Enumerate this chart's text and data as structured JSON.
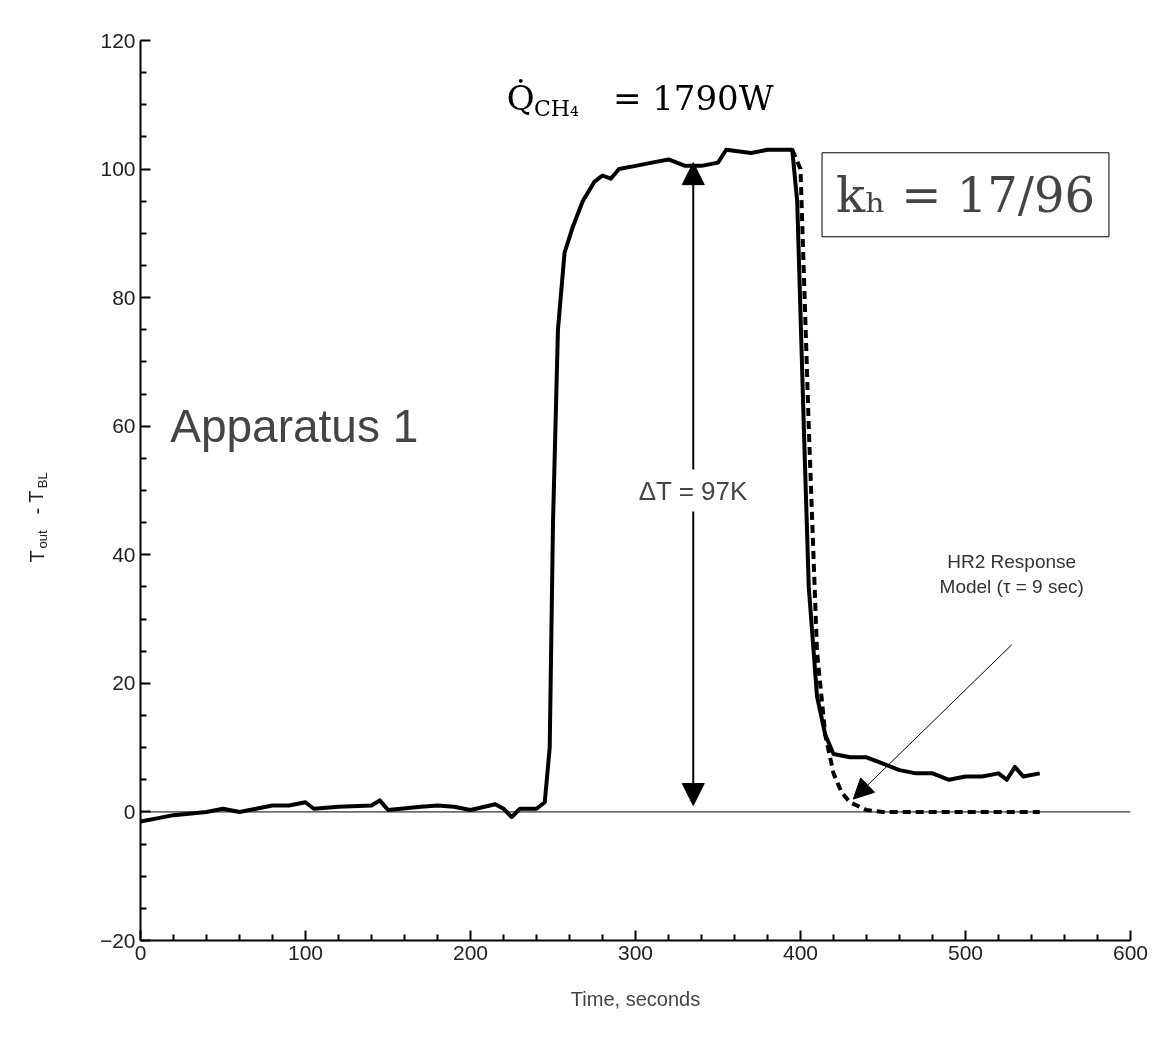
{
  "chart_data": {
    "type": "line",
    "xlabel": "Time, seconds",
    "ylabel": "T$_{out}$ - T$_{BL}$",
    "xlim": [
      0,
      600
    ],
    "ylim": [
      -20,
      120
    ],
    "xticks": [
      0,
      100,
      200,
      300,
      400,
      500,
      600
    ],
    "yticks": [
      -20,
      0,
      20,
      40,
      60,
      80,
      100,
      120
    ],
    "grid": false,
    "marker": "none",
    "series": [
      {
        "color": "#000000",
        "line_style": "solid",
        "x": [
          0,
          10,
          20,
          40,
          50,
          60,
          70,
          80,
          90,
          100,
          105,
          120,
          140,
          145,
          150,
          170,
          180,
          190,
          200,
          215,
          220,
          225,
          230,
          240,
          245,
          248,
          250,
          253,
          257,
          262,
          268,
          275,
          280,
          285,
          290,
          300,
          310,
          320,
          330,
          340,
          350,
          355,
          370,
          380,
          390,
          395,
          398,
          402,
          405,
          410,
          415,
          420,
          430,
          440,
          450,
          460,
          470,
          480,
          490,
          500,
          510,
          520,
          525,
          530,
          535,
          545
        ],
        "values": [
          -1.5,
          -1,
          -0.5,
          0,
          0.5,
          0,
          0.5,
          1,
          1,
          1.5,
          0.5,
          0.8,
          1,
          1.8,
          0.3,
          0.8,
          1,
          0.8,
          0.3,
          1.2,
          0.5,
          -0.8,
          0.5,
          0.5,
          1.5,
          10,
          45,
          75,
          87,
          91,
          95,
          98,
          99,
          98.5,
          100,
          100.5,
          101,
          101.5,
          100.5,
          100.5,
          101,
          103,
          102.5,
          103,
          103,
          103,
          95,
          60,
          35,
          18,
          12,
          9,
          8.5,
          8.5,
          7.5,
          6.5,
          6,
          6,
          5,
          5.5,
          5.5,
          6,
          5,
          7,
          5.5,
          6
        ]
      },
      {
        "color": "#000000",
        "line_style": "dashed",
        "x": [
          395,
          400,
          405,
          410,
          415,
          420,
          425,
          430,
          440,
          450,
          545
        ],
        "values": [
          103,
          100,
          60,
          25,
          12,
          6,
          3,
          1.5,
          0.3,
          0,
          0
        ]
      }
    ],
    "ref_lines": [
      {
        "axis": "y",
        "value": 0,
        "color": "#000000"
      }
    ],
    "annotations": [
      "Q̇$_{CH₄}$ = 1790W",
      "kₕ = 17/96",
      "Apparatus 1",
      "ΔT = 97K",
      "HR2 Response\nModel (τ = 9 sec)"
    ]
  }
}
